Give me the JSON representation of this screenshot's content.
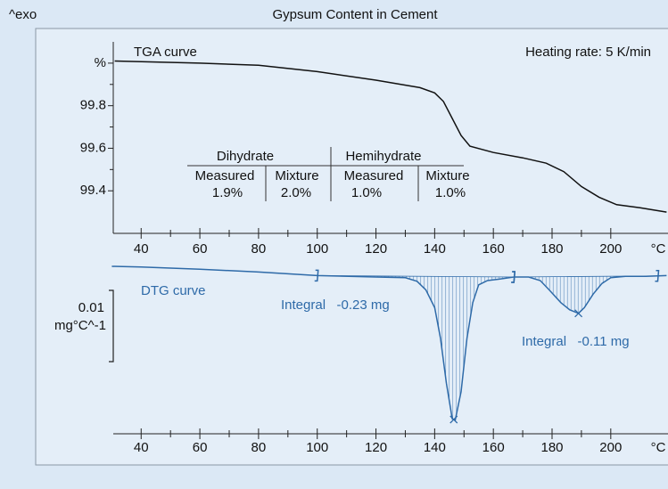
{
  "corner_label": "^exo",
  "chart_data": [
    {
      "type": "line",
      "title": "Gypsum Content  in Cement",
      "series_label": "TGA curve",
      "note": "Heating rate: 5 K/min",
      "color": "#111111",
      "x": [
        31,
        60,
        80,
        100,
        120,
        135,
        140,
        143,
        146,
        149,
        152,
        160,
        170,
        178,
        184,
        190,
        196,
        202,
        210,
        219
      ],
      "values": [
        100.01,
        100.0,
        99.99,
        99.96,
        99.92,
        99.885,
        99.86,
        99.82,
        99.74,
        99.66,
        99.61,
        99.58,
        99.555,
        99.53,
        99.49,
        99.42,
        99.37,
        99.335,
        99.32,
        99.3
      ],
      "xlim": [
        30.5,
        219.5
      ],
      "xticks": [
        40,
        60,
        80,
        100,
        120,
        140,
        160,
        180,
        200
      ],
      "xlabel": "°C",
      "ylim": [
        99.2,
        100.1
      ],
      "yticks": [
        {
          "value": 100,
          "label": "%"
        },
        99.8,
        99.6,
        99.4
      ],
      "table": {
        "groups": [
          "Dihydrate",
          "Hemihydrate"
        ],
        "columns": [
          "Measured",
          "Mixture",
          "Measured",
          "Mixture"
        ],
        "cells": [
          "1.9%",
          "2.0%",
          "1.0%",
          "1.0%"
        ]
      }
    },
    {
      "type": "line",
      "series_label": "DTG curve",
      "color": "#2e6aa8",
      "x": [
        30,
        40,
        60,
        80,
        100,
        120,
        130,
        134,
        137,
        140,
        142,
        144,
        146,
        147,
        149,
        151,
        153,
        155,
        158,
        162,
        167,
        172,
        176,
        179,
        183,
        186,
        189,
        191,
        194,
        197,
        200,
        205,
        212,
        219
      ],
      "values": [
        -0.0015,
        -0.0016,
        -0.0019,
        -0.0023,
        -0.0028,
        -0.003,
        -0.0031,
        -0.0036,
        -0.0048,
        -0.0073,
        -0.0116,
        -0.0179,
        -0.0229,
        -0.0231,
        -0.0191,
        -0.0116,
        -0.0066,
        -0.0041,
        -0.0035,
        -0.0033,
        -0.003,
        -0.003,
        -0.0035,
        -0.0048,
        -0.0066,
        -0.0076,
        -0.0081,
        -0.0073,
        -0.0054,
        -0.0039,
        -0.0031,
        -0.0029,
        -0.0029,
        -0.0028
      ],
      "xlim": [
        30.5,
        219.5
      ],
      "xticks": [
        40,
        60,
        80,
        100,
        120,
        140,
        160,
        180,
        200
      ],
      "xlabel": "°C",
      "ylim": [
        -0.025,
        0.0
      ],
      "scale_bar": 0.01,
      "scale_unit": "mg°C^-1",
      "integrals": [
        {
          "label": "Integral   -0.23 mg",
          "range": [
            100,
            167
          ],
          "peak": 146.5
        },
        {
          "label": "Integral   -0.11 mg",
          "range": [
            167,
            216
          ],
          "peak": 189
        }
      ]
    }
  ]
}
